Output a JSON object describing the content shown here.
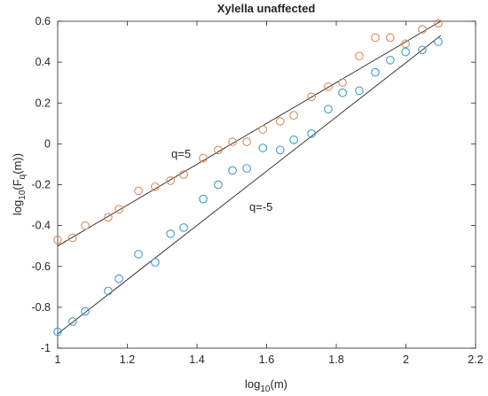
{
  "chart_data": {
    "type": "scatter",
    "title": "Xylella unaffected",
    "x_label": [
      "log",
      "10",
      "(m)"
    ],
    "y_label": [
      "log",
      "10",
      "(F",
      "q",
      "(m))"
    ],
    "xlim": [
      1,
      2.2
    ],
    "ylim": [
      -1,
      0.6
    ],
    "xticks": [
      1,
      1.2,
      1.4,
      1.6,
      1.8,
      2,
      2.2
    ],
    "yticks": [
      -1,
      -0.8,
      -0.6,
      -0.4,
      -0.2,
      0,
      0.2,
      0.4,
      0.6
    ],
    "x": [
      1,
      1.043,
      1.079,
      1.145,
      1.176,
      1.232,
      1.28,
      1.324,
      1.362,
      1.418,
      1.461,
      1.502,
      1.543,
      1.589,
      1.639,
      1.678,
      1.729,
      1.777,
      1.818,
      1.866,
      1.912,
      1.955,
      1.999,
      2.047,
      2.093
    ],
    "series": [
      {
        "name": "q=5",
        "color": "#d98a5a",
        "values": [
          -0.47,
          -0.46,
          -0.4,
          -0.36,
          -0.32,
          -0.23,
          -0.21,
          -0.18,
          -0.15,
          -0.07,
          -0.03,
          0.01,
          0.01,
          0.07,
          0.11,
          0.14,
          0.23,
          0.28,
          0.3,
          0.43,
          0.52,
          0.52,
          0.49,
          0.56,
          0.59
        ]
      },
      {
        "name": "q=-5",
        "color": "#3a9ec8",
        "values": [
          -0.92,
          -0.87,
          -0.82,
          -0.72,
          -0.66,
          -0.54,
          -0.58,
          -0.44,
          -0.41,
          -0.27,
          -0.2,
          -0.13,
          -0.12,
          -0.02,
          -0.03,
          0.02,
          0.05,
          0.17,
          0.25,
          0.26,
          0.35,
          0.41,
          0.45,
          0.46,
          0.5
        ]
      }
    ],
    "fits": [
      {
        "color": "#262626",
        "x": [
          1,
          2.1
        ],
        "values": [
          -0.5,
          0.6
        ]
      },
      {
        "color": "#262626",
        "x": [
          1,
          2.1
        ],
        "values": [
          -0.93,
          0.53
        ]
      }
    ]
  }
}
